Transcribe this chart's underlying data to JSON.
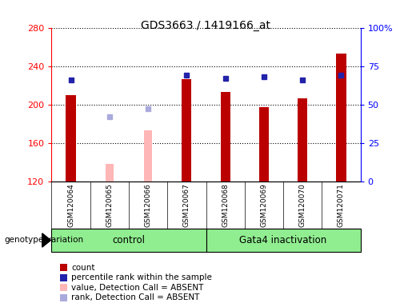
{
  "title": "GDS3663 / 1419166_at",
  "samples": [
    "GSM120064",
    "GSM120065",
    "GSM120066",
    "GSM120067",
    "GSM120068",
    "GSM120069",
    "GSM120070",
    "GSM120071"
  ],
  "count_values": [
    210,
    null,
    null,
    226,
    213,
    197,
    206,
    253
  ],
  "absent_value_values": [
    null,
    138,
    173,
    null,
    null,
    null,
    null,
    null
  ],
  "percentile_rank_values": [
    66,
    null,
    null,
    69,
    67,
    68,
    66,
    69
  ],
  "absent_rank_values": [
    null,
    42,
    47,
    null,
    null,
    null,
    null,
    null
  ],
  "ylim_left": [
    120,
    280
  ],
  "ylim_right": [
    0,
    100
  ],
  "yticks_left": [
    120,
    160,
    200,
    240,
    280
  ],
  "yticks_right": [
    0,
    25,
    50,
    75,
    100
  ],
  "bar_color_count": "#bb0000",
  "bar_color_absent_value": "#ffb6b6",
  "dot_color_rank": "#2222aa",
  "dot_color_absent_rank": "#aaaadd",
  "bg_color": "#d8d8d8",
  "plot_bg": "#ffffff",
  "legend_labels": [
    "count",
    "percentile rank within the sample",
    "value, Detection Call = ABSENT",
    "rank, Detection Call = ABSENT"
  ],
  "legend_colors": [
    "#bb0000",
    "#2222aa",
    "#ffb6b6",
    "#aaaadd"
  ],
  "bar_width": 0.25,
  "absent_bar_width": 0.2,
  "dot_size": 5
}
